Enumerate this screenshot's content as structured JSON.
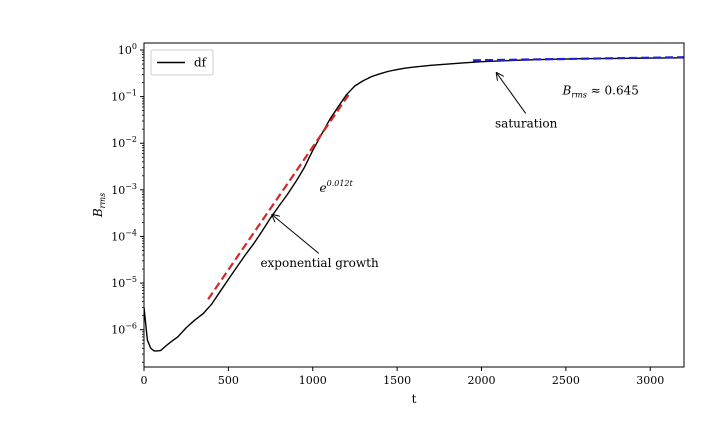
{
  "chart_data": {
    "type": "line",
    "title": "",
    "xlabel": "t",
    "ylabel_base": "B",
    "ylabel_sub": "rms",
    "xlim": [
      0,
      3200
    ],
    "ylim_log10": [
      -6.8,
      0.15
    ],
    "y_scale": "log",
    "x_ticks": [
      0,
      500,
      1000,
      1500,
      2000,
      2500,
      3000
    ],
    "x_tick_labels": [
      "0",
      "500",
      "1000",
      "1500",
      "2000",
      "2500",
      "3000"
    ],
    "y_tick_exponents": [
      -6,
      -5,
      -4,
      -3,
      -2,
      -1,
      0
    ],
    "y_tick_base": "10",
    "y_tick_exponent_labels": [
      "−6",
      "−5",
      "−4",
      "−3",
      "−2",
      "−1",
      "0"
    ],
    "legend": {
      "placement": "top-left",
      "entries": [
        {
          "label": "df",
          "color": "#000000"
        }
      ]
    },
    "series": [
      {
        "name": "df",
        "color": "#000000",
        "style": "solid",
        "x": [
          0,
          20,
          40,
          60,
          80,
          100,
          130,
          160,
          200,
          250,
          300,
          350,
          400,
          450,
          500,
          550,
          600,
          650,
          700,
          750,
          800,
          850,
          900,
          950,
          1000,
          1050,
          1100,
          1150,
          1200,
          1250,
          1300,
          1350,
          1400,
          1450,
          1500,
          1550,
          1600,
          1700,
          1800,
          1900,
          2000,
          2200,
          2400,
          2600,
          2800,
          3000,
          3200
        ],
        "y": [
          3e-06,
          6e-07,
          4e-07,
          3.5e-07,
          3.5e-07,
          3.6e-07,
          4.5e-07,
          5.5e-07,
          7e-07,
          1.1e-06,
          1.6e-06,
          2.2e-06,
          3.5e-06,
          6.5e-06,
          1.2e-05,
          2.2e-05,
          4e-05,
          7e-05,
          0.00013,
          0.00025,
          0.00045,
          0.0008,
          0.0015,
          0.003,
          0.007,
          0.015,
          0.032,
          0.06,
          0.11,
          0.17,
          0.22,
          0.27,
          0.31,
          0.35,
          0.38,
          0.41,
          0.43,
          0.47,
          0.5,
          0.53,
          0.56,
          0.6,
          0.63,
          0.65,
          0.66,
          0.67,
          0.68
        ]
      },
      {
        "name": "exponential-fit",
        "color": "#d62728",
        "style": "dashed",
        "x": [
          380,
          1220
        ],
        "y": [
          4.5e-06,
          0.12
        ]
      },
      {
        "name": "saturation-fit",
        "color": "#1f1fd6",
        "style": "dashed",
        "x": [
          1950,
          3200
        ],
        "y": [
          0.6,
          0.7
        ]
      }
    ],
    "annotations": [
      {
        "id": "exp-formula",
        "text_base": "e",
        "text_sup": "0.012t",
        "x": 1040,
        "y": 0.0009
      },
      {
        "id": "exp-growth",
        "text": "exponential growth",
        "x": 690,
        "y": 2.2e-05,
        "arrow_to": [
          760,
          0.00029
        ]
      },
      {
        "id": "saturation",
        "text": "saturation",
        "x": 2080,
        "y": 0.022,
        "arrow_to": [
          2090,
          0.32
        ]
      },
      {
        "id": "brms-value",
        "text_base": "B",
        "text_sub": "rms",
        "text_rest": " ≈ 0.645",
        "x": 2480,
        "y": 0.11
      }
    ]
  }
}
